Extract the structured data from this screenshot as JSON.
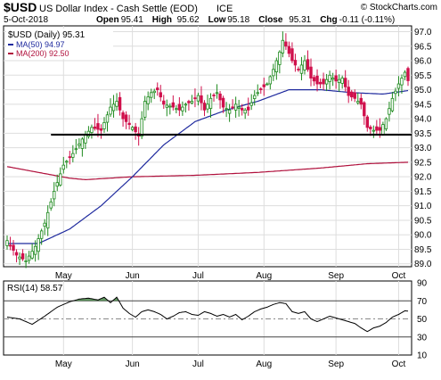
{
  "header": {
    "symbol": "$USD",
    "name": "US Dollar Index - Cash Settle (EOD)",
    "exchange": "ICE",
    "watermark": "© StockCharts.com",
    "date": "5-Oct-2018",
    "ohlc": [
      {
        "label": "Open",
        "value": "95.41"
      },
      {
        "label": "High",
        "value": "95.62"
      },
      {
        "label": "Low",
        "value": "95.18"
      },
      {
        "label": "Close",
        "value": "95.31"
      },
      {
        "label": "Chg",
        "value": "-0.11 (-0.11%)"
      }
    ]
  },
  "legend": {
    "price": "$USD (Daily) 95.31",
    "ma50": "MA(50) 94.97",
    "ma200": "MA(200) 92.50",
    "rsi": "RSI(14) 58.57"
  },
  "colors": {
    "up": "#1e8a1e",
    "down": "#d0104c",
    "ma50": "#1f2a9e",
    "ma200": "#b0103c",
    "grid": "#dddddd",
    "rsi_line": "#000000",
    "rsi_fill": "#4a8a4a"
  },
  "chart_data": [
    {
      "type": "candlestick",
      "title": "$USD (Daily) 95.31",
      "x_axis": {
        "month_labels": [
          "May",
          "Jun",
          "Jul",
          "Aug",
          "Sep",
          "Oct"
        ],
        "month_positions_trading_day": [
          18,
          40,
          61,
          82,
          105,
          125
        ]
      },
      "y_axis": {
        "range": [
          88.9,
          97.2
        ],
        "ticks": [
          "89.0",
          "89.5",
          "90.0",
          "90.5",
          "91.0",
          "91.5",
          "92.0",
          "92.5",
          "93.0",
          "93.5",
          "94.0",
          "94.5",
          "95.0",
          "95.5",
          "96.0",
          "96.5",
          "97.0"
        ],
        "side": "right"
      },
      "price_path": [
        [
          0,
          89.8
        ],
        [
          3,
          89.3
        ],
        [
          6,
          89.1
        ],
        [
          9,
          89.6
        ],
        [
          12,
          90.4
        ],
        [
          15,
          91.5
        ],
        [
          18,
          92.4
        ],
        [
          21,
          92.8
        ],
        [
          24,
          93.3
        ],
        [
          27,
          93.7
        ],
        [
          30,
          93.6
        ],
        [
          33,
          94.4
        ],
        [
          35,
          94.6
        ],
        [
          37,
          94.0
        ],
        [
          40,
          93.7
        ],
        [
          42,
          93.4
        ],
        [
          44,
          94.6
        ],
        [
          46,
          94.9
        ],
        [
          48,
          95.0
        ],
        [
          50,
          94.5
        ],
        [
          53,
          94.4
        ],
        [
          55,
          94.3
        ],
        [
          57,
          94.5
        ],
        [
          59,
          94.6
        ],
        [
          61,
          94.8
        ],
        [
          63,
          94.3
        ],
        [
          65,
          94.7
        ],
        [
          67,
          94.9
        ],
        [
          69,
          94.4
        ],
        [
          71,
          94.3
        ],
        [
          73,
          94.5
        ],
        [
          75,
          94.3
        ],
        [
          77,
          94.3
        ],
        [
          79,
          94.8
        ],
        [
          81,
          95.0
        ],
        [
          83,
          95.2
        ],
        [
          85,
          95.7
        ],
        [
          87,
          96.3
        ],
        [
          88,
          96.7
        ],
        [
          89,
          96.5
        ],
        [
          91,
          96.0
        ],
        [
          93,
          95.7
        ],
        [
          95,
          96.0
        ],
        [
          97,
          95.4
        ],
        [
          99,
          95.2
        ],
        [
          101,
          95.2
        ],
        [
          103,
          95.5
        ],
        [
          105,
          95.3
        ],
        [
          107,
          95.4
        ],
        [
          109,
          94.8
        ],
        [
          111,
          94.7
        ],
        [
          113,
          94.5
        ],
        [
          115,
          93.7
        ],
        [
          117,
          93.6
        ],
        [
          119,
          93.6
        ],
        [
          121,
          94.0
        ],
        [
          123,
          94.7
        ],
        [
          125,
          95.2
        ],
        [
          127,
          95.6
        ],
        [
          128,
          95.31
        ]
      ],
      "ma50": [
        [
          0,
          89.7
        ],
        [
          10,
          89.7
        ],
        [
          20,
          90.2
        ],
        [
          30,
          91.0
        ],
        [
          40,
          92.0
        ],
        [
          50,
          93.1
        ],
        [
          60,
          93.9
        ],
        [
          70,
          94.3
        ],
        [
          80,
          94.6
        ],
        [
          90,
          95.0
        ],
        [
          100,
          95.0
        ],
        [
          110,
          94.9
        ],
        [
          120,
          94.85
        ],
        [
          128,
          94.97
        ]
      ],
      "ma200": [
        [
          0,
          92.35
        ],
        [
          10,
          92.15
        ],
        [
          20,
          91.95
        ],
        [
          25,
          91.9
        ],
        [
          40,
          92.0
        ],
        [
          60,
          92.05
        ],
        [
          80,
          92.15
        ],
        [
          100,
          92.3
        ],
        [
          115,
          92.45
        ],
        [
          128,
          92.5
        ]
      ],
      "support_line": {
        "y": 93.45,
        "from_day": 14,
        "to_day": 128
      }
    },
    {
      "type": "line",
      "title": "RSI(14) 58.57",
      "y_axis": {
        "range": [
          10,
          92
        ],
        "ticks": [
          "10",
          "30",
          "50",
          "70",
          "90"
        ],
        "reference_lines": [
          30,
          50,
          70
        ]
      },
      "x_axis": {
        "month_labels": [
          "May",
          "Jun",
          "Jul",
          "Aug",
          "Sep",
          "Oct"
        ]
      },
      "rsi": [
        [
          0,
          52
        ],
        [
          4,
          50
        ],
        [
          8,
          44
        ],
        [
          12,
          53
        ],
        [
          16,
          63
        ],
        [
          20,
          69
        ],
        [
          23,
          72
        ],
        [
          26,
          73
        ],
        [
          29,
          71
        ],
        [
          31,
          74
        ],
        [
          33,
          68
        ],
        [
          35,
          74
        ],
        [
          37,
          62
        ],
        [
          39,
          56
        ],
        [
          41,
          52
        ],
        [
          43,
          58
        ],
        [
          45,
          60
        ],
        [
          47,
          58
        ],
        [
          49,
          55
        ],
        [
          51,
          50
        ],
        [
          53,
          53
        ],
        [
          55,
          57
        ],
        [
          57,
          58
        ],
        [
          59,
          55
        ],
        [
          61,
          54
        ],
        [
          63,
          58
        ],
        [
          65,
          56
        ],
        [
          67,
          53
        ],
        [
          69,
          55
        ],
        [
          71,
          52
        ],
        [
          73,
          55
        ],
        [
          75,
          49
        ],
        [
          77,
          53
        ],
        [
          79,
          58
        ],
        [
          81,
          61
        ],
        [
          83,
          63
        ],
        [
          85,
          66
        ],
        [
          87,
          68
        ],
        [
          89,
          67
        ],
        [
          91,
          58
        ],
        [
          93,
          56
        ],
        [
          95,
          58
        ],
        [
          97,
          50
        ],
        [
          99,
          47
        ],
        [
          101,
          50
        ],
        [
          103,
          53
        ],
        [
          105,
          51
        ],
        [
          107,
          49
        ],
        [
          109,
          47
        ],
        [
          111,
          45
        ],
        [
          113,
          40
        ],
        [
          115,
          36
        ],
        [
          117,
          40
        ],
        [
          119,
          42
        ],
        [
          121,
          46
        ],
        [
          123,
          52
        ],
        [
          125,
          55
        ],
        [
          127,
          59
        ],
        [
          128,
          58.57
        ]
      ]
    }
  ]
}
